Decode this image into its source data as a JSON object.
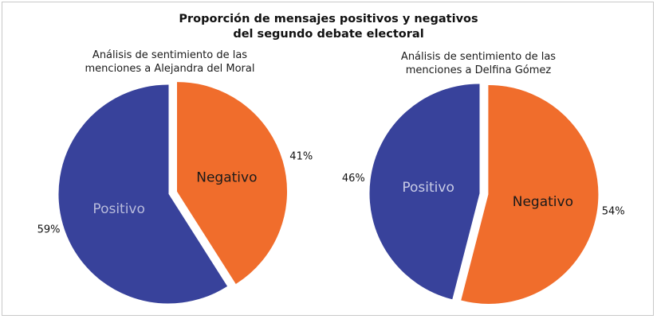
{
  "chart_data": [
    {
      "type": "pie",
      "title_lines": [
        "Proporción de mensajes positivos y negativos",
        "del segundo debate electoral"
      ],
      "subtitle_lines": [
        "Análisis de sentimiento de las",
        "menciones a Alejandra del Moral"
      ],
      "slices": [
        {
          "label": "Positivo",
          "value": 59,
          "pct_label": "59%",
          "color": "#38429b",
          "label_color": "#b9bcdc",
          "exploded": false
        },
        {
          "label": "Negativo",
          "value": 41,
          "pct_label": "41%",
          "color": "#f06d2c",
          "label_color": "#1a1a1a",
          "exploded": true
        }
      ]
    },
    {
      "type": "pie",
      "subtitle_lines": [
        "Análisis de sentimiento de las",
        "menciones a Delfina Gómez"
      ],
      "slices": [
        {
          "label": "Positivo",
          "value": 46,
          "pct_label": "46%",
          "color": "#38429b",
          "label_color": "#c9cce6",
          "exploded": false
        },
        {
          "label": "Negativo",
          "value": 54,
          "pct_label": "54%",
          "color": "#f06d2c",
          "label_color": "#1a1a1a",
          "exploded": true
        }
      ]
    }
  ]
}
